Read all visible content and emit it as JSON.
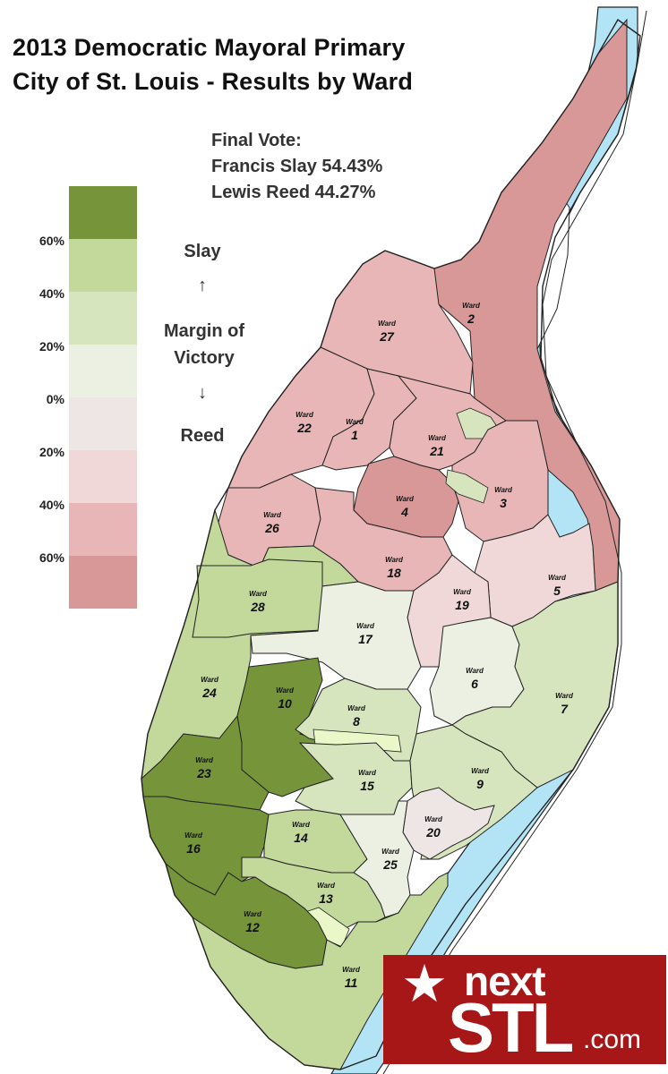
{
  "title_line1": "2013 Democratic Mayoral Primary",
  "title_line2": "City of St. Louis - Results by Ward",
  "final_vote": {
    "heading": "Final Vote:",
    "slay": "Francis Slay 54.43%",
    "reed": "Lewis Reed 44.27%"
  },
  "legend": {
    "ticks": [
      "60%",
      "40%",
      "20%",
      "0%",
      "20%",
      "40%",
      "60%"
    ],
    "colors": [
      "#76953a",
      "#c3d89b",
      "#d6e5bd",
      "#ebf0e2",
      "#ede6e5",
      "#f1d8d8",
      "#e8b6b6",
      "#d99898"
    ],
    "slay": "Slay",
    "arrow_up": "↑",
    "margin_line1": "Margin of",
    "margin_line2": "Victory",
    "arrow_down": "↓",
    "reed": "Reed"
  },
  "ward_word": "Ward",
  "wards": [
    {
      "number": "2",
      "color": "#d99898"
    },
    {
      "number": "27",
      "color": "#e8b6b6"
    },
    {
      "number": "22",
      "color": "#e8b6b6"
    },
    {
      "number": "1",
      "color": "#e8b6b6"
    },
    {
      "number": "21",
      "color": "#e8b6b6"
    },
    {
      "number": "4",
      "color": "#d99898"
    },
    {
      "number": "3",
      "color": "#e8b6b6"
    },
    {
      "number": "26",
      "color": "#e8b6b6"
    },
    {
      "number": "18",
      "color": "#e8b6b6"
    },
    {
      "number": "5",
      "color": "#f1d8d8"
    },
    {
      "number": "19",
      "color": "#f1d8d8"
    },
    {
      "number": "28",
      "color": "#c3d89b"
    },
    {
      "number": "17",
      "color": "#ebf0e2"
    },
    {
      "number": "24",
      "color": "#c3d89b"
    },
    {
      "number": "10",
      "color": "#76953a"
    },
    {
      "number": "6",
      "color": "#ebf0e2"
    },
    {
      "number": "7",
      "color": "#d6e5bd"
    },
    {
      "number": "8",
      "color": "#d6e5bd"
    },
    {
      "number": "23",
      "color": "#76953a"
    },
    {
      "number": "15",
      "color": "#d6e5bd"
    },
    {
      "number": "9",
      "color": "#d6e5bd"
    },
    {
      "number": "20",
      "color": "#ede6e5"
    },
    {
      "number": "16",
      "color": "#76953a"
    },
    {
      "number": "14",
      "color": "#c3d89b"
    },
    {
      "number": "25",
      "color": "#ebf0e2"
    },
    {
      "number": "13",
      "color": "#c3d89b"
    },
    {
      "number": "12",
      "color": "#76953a"
    },
    {
      "number": "11",
      "color": "#c3d89b"
    }
  ],
  "river_color": "#b3e4f5",
  "logo": {
    "next": "next",
    "stl": "STL",
    "com": ".com",
    "star": "★"
  }
}
